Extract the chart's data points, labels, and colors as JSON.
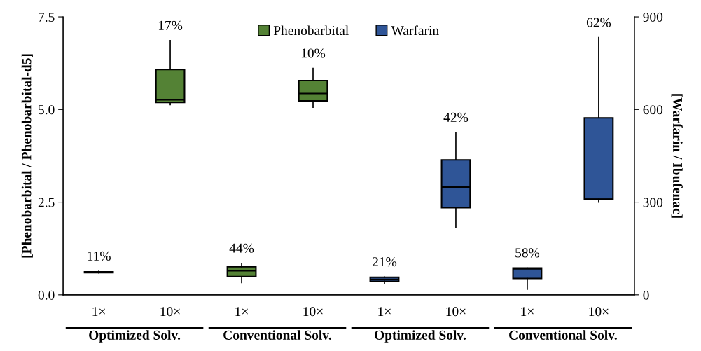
{
  "chart_data": {
    "type": "box",
    "categories": [
      "1×",
      "10×",
      "1×",
      "10×",
      "1×",
      "10×",
      "1×",
      "10×"
    ],
    "ylabel": "[Phenobarbital / Phenobarbital-d5]",
    "y2label": "[Warfarin / Ibufenac]",
    "ylim": [
      0,
      7.5
    ],
    "yticks": [
      {
        "value": 0,
        "label": "0.0"
      },
      {
        "value": 2.5,
        "label": "2.5"
      },
      {
        "value": 5,
        "label": "5.0"
      },
      {
        "value": 7.5,
        "label": "7.5"
      }
    ],
    "y2lim": [
      0,
      900
    ],
    "y2ticks": [
      0,
      300,
      600,
      900
    ],
    "grid": false,
    "legend": "top",
    "annotations": [
      "Optimized Solv.",
      "Conventional Solv.",
      "Optimized Solv.",
      "Conventional Solv."
    ],
    "series": [
      {
        "name": "Phenobarbital",
        "color": "#548235",
        "boxes": [
          {
            "low": 0.59,
            "q1": 0.6,
            "median": 0.61,
            "q3": 0.62,
            "high": 0.64
          },
          {
            "low": 5.13,
            "q1": 5.19,
            "median": 5.26,
            "q3": 6.08,
            "high": 6.86
          },
          {
            "low": 0.33,
            "q1": 0.49,
            "median": 0.65,
            "q3": 0.76,
            "high": 0.85
          },
          {
            "low": 5.06,
            "q1": 5.23,
            "median": 5.43,
            "q3": 5.78,
            "high": 6.11
          },
          null,
          null,
          null,
          null
        ],
        "value_labels": [
          "11%",
          "17%",
          "44%",
          "10%",
          null,
          null,
          null,
          null
        ]
      },
      {
        "name": "Warfarin",
        "color": "#2f5597",
        "axis": "y2",
        "boxes": [
          null,
          null,
          null,
          null,
          {
            "low": 37,
            "q1": 44,
            "median": 50,
            "q3": 57,
            "high": 58
          },
          {
            "low": 219,
            "q1": 282,
            "median": 349,
            "q3": 437,
            "high": 526
          },
          {
            "low": 18,
            "q1": 53,
            "median": 84,
            "q3": 87,
            "high": 87
          },
          {
            "low": 300,
            "q1": 309,
            "median": 310,
            "q3": 573,
            "high": 833
          }
        ],
        "value_labels": [
          null,
          null,
          null,
          null,
          "21%",
          "42%",
          "58%",
          "62%"
        ]
      }
    ]
  }
}
